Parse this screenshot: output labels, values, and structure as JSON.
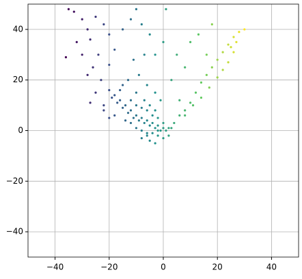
{
  "chart_data": {
    "type": "scatter",
    "x": [
      -35,
      -33,
      -30,
      -28,
      -32,
      -30,
      -27,
      -25,
      -22,
      -20,
      -24,
      -26,
      -28,
      -23,
      -25,
      -22,
      -20,
      -18,
      -15,
      -12,
      -10,
      -8,
      -5,
      -3,
      0,
      1,
      -36,
      -27,
      -18,
      -16,
      -14,
      -12,
      -10,
      -8,
      -6,
      -4,
      -2,
      0,
      -1,
      -3,
      -5,
      -7,
      -9,
      -11,
      -13,
      -15,
      -17,
      -19,
      -20,
      -16,
      -12,
      -10,
      -8,
      -6,
      -4,
      -2,
      0,
      -14,
      -12,
      -10,
      -8,
      -6,
      -4,
      -2,
      1,
      2,
      3,
      -15,
      -13,
      -10,
      -7,
      -5,
      -3,
      -1,
      -22,
      -20,
      -18,
      -9,
      -6,
      -3,
      -11,
      -7,
      4,
      6,
      8,
      10,
      12,
      14,
      16,
      18,
      20,
      22,
      24,
      26,
      28,
      30,
      8,
      11,
      14,
      17,
      20,
      22,
      24,
      26,
      27,
      25,
      5,
      8,
      10,
      13,
      18,
      3,
      6,
      16,
      -8,
      -5,
      -2,
      0,
      2,
      -6,
      -3
    ],
    "y": [
      48,
      47,
      44,
      40,
      35,
      30,
      36,
      45,
      42,
      38,
      30,
      25,
      22,
      20,
      15,
      10,
      26,
      32,
      40,
      44,
      48,
      42,
      38,
      30,
      35,
      48,
      29,
      11,
      14,
      12,
      10,
      8,
      6,
      5,
      4,
      3,
      2,
      1,
      0,
      1,
      2,
      3,
      4,
      5,
      7,
      9,
      11,
      13,
      16,
      16,
      12,
      10,
      9,
      8,
      6,
      5,
      3,
      4,
      3,
      1,
      0,
      -1,
      -1,
      0,
      0,
      1,
      1,
      18,
      20,
      15,
      12,
      10,
      8,
      12,
      8,
      5,
      6,
      22,
      18,
      15,
      28,
      30,
      3,
      6,
      8,
      11,
      15,
      19,
      22,
      25,
      28,
      31,
      34,
      37,
      39,
      40,
      6,
      10,
      13,
      17,
      21,
      24,
      27,
      31,
      35,
      33,
      30,
      25,
      35,
      38,
      42,
      20,
      12,
      30,
      -3,
      -4,
      -2,
      -3,
      -2,
      -2,
      -5
    ],
    "color_by": "x",
    "colormap": [
      "#440154",
      "#3b528b",
      "#21918c",
      "#5ec962",
      "#fde725"
    ],
    "xlim": [
      -50,
      50
    ],
    "ylim": [
      -50,
      50
    ],
    "xticks": [
      {
        "value": -40,
        "label": "−40"
      },
      {
        "value": -20,
        "label": "−20"
      },
      0,
      20,
      40
    ],
    "yticks": [
      {
        "value": -40,
        "label": "−40"
      },
      {
        "value": -20,
        "label": "−20"
      },
      0,
      20,
      40
    ],
    "grid": true
  }
}
